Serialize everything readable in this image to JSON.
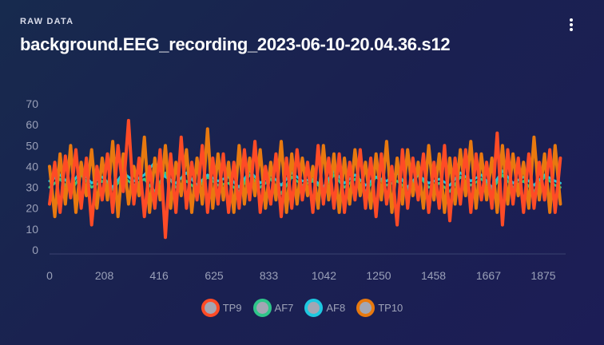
{
  "header": {
    "eyebrow": "RAW DATA",
    "title": "background.EEG_recording_2023-06-10-20.04.36.s12",
    "menu_icon": "more-vertical-icon"
  },
  "chart_data": {
    "type": "line",
    "xlabel": "",
    "ylabel": "",
    "xlim": [
      0,
      1960
    ],
    "ylim": [
      0,
      70
    ],
    "y_ticks": [
      0,
      10,
      20,
      30,
      40,
      50,
      60,
      70
    ],
    "x_ticks": [
      0,
      208,
      416,
      625,
      833,
      1042,
      1250,
      1458,
      1667,
      1875
    ],
    "legend_position": "bottom",
    "grid": false,
    "series": [
      {
        "name": "TP9",
        "color": "#ff4b26",
        "x": [
          0,
          20,
          40,
          60,
          80,
          100,
          120,
          140,
          160,
          180,
          200,
          220,
          240,
          260,
          280,
          300,
          320,
          340,
          360,
          380,
          400,
          420,
          440,
          460,
          480,
          500,
          520,
          540,
          560,
          580,
          600,
          620,
          640,
          660,
          680,
          700,
          720,
          740,
          760,
          780,
          800,
          820,
          840,
          860,
          880,
          900,
          920,
          940,
          960,
          980,
          1000,
          1020,
          1040,
          1060,
          1080,
          1100,
          1120,
          1140,
          1160,
          1180,
          1200,
          1220,
          1240,
          1260,
          1280,
          1300,
          1320,
          1340,
          1360,
          1380,
          1400,
          1420,
          1440,
          1460,
          1480,
          1500,
          1520,
          1540,
          1560,
          1580,
          1600,
          1620,
          1640,
          1660,
          1680,
          1700,
          1720,
          1740,
          1760,
          1780,
          1800,
          1820,
          1840,
          1860,
          1880,
          1900,
          1920,
          1940
        ],
        "values": [
          22,
          42,
          18,
          45,
          25,
          48,
          20,
          44,
          12,
          40,
          24,
          46,
          18,
          50,
          28,
          62,
          22,
          44,
          16,
          40,
          20,
          48,
          6,
          46,
          18,
          54,
          20,
          42,
          24,
          50,
          18,
          44,
          22,
          46,
          18,
          42,
          20,
          48,
          24,
          52,
          18,
          40,
          22,
          46,
          16,
          44,
          20,
          48,
          24,
          42,
          18,
          50,
          22,
          44,
          20,
          46,
          18,
          42,
          24,
          48,
          20,
          44,
          16,
          46,
          22,
          40,
          12,
          48,
          20,
          44,
          24,
          46,
          18,
          42,
          20,
          50,
          14,
          44,
          22,
          48,
          18,
          46,
          24,
          42,
          20,
          56,
          12,
          48,
          22,
          44,
          18,
          46,
          20,
          42,
          24,
          48,
          18,
          44
        ]
      },
      {
        "name": "AF7",
        "color": "#2fc68a",
        "x": [
          0,
          40,
          80,
          120,
          160,
          200,
          240,
          280,
          320,
          360,
          400,
          440,
          480,
          520,
          560,
          600,
          640,
          680,
          720,
          760,
          800,
          840,
          880,
          920,
          960,
          1000,
          1040,
          1080,
          1120,
          1160,
          1200,
          1240,
          1280,
          1320,
          1360,
          1400,
          1440,
          1480,
          1520,
          1560,
          1600,
          1640,
          1680,
          1720,
          1760,
          1800,
          1840,
          1880,
          1920,
          1940
        ],
        "values": [
          30,
          34,
          28,
          36,
          30,
          33,
          29,
          35,
          31,
          34,
          28,
          37,
          30,
          33,
          29,
          35,
          31,
          32,
          28,
          36,
          30,
          34,
          27,
          35,
          31,
          33,
          29,
          36,
          30,
          34,
          28,
          35,
          31,
          33,
          29,
          36,
          30,
          32,
          28,
          35,
          31,
          34,
          29,
          36,
          30,
          33,
          28,
          35,
          31,
          30
        ]
      },
      {
        "name": "AF8",
        "color": "#1ec8e0",
        "x": [
          0,
          40,
          80,
          120,
          160,
          200,
          240,
          280,
          320,
          360,
          400,
          440,
          480,
          520,
          560,
          600,
          640,
          680,
          720,
          760,
          800,
          840,
          880,
          920,
          960,
          1000,
          1040,
          1080,
          1120,
          1160,
          1200,
          1240,
          1280,
          1320,
          1360,
          1400,
          1440,
          1480,
          1520,
          1560,
          1600,
          1640,
          1680,
          1720,
          1760,
          1800,
          1840,
          1880,
          1920,
          1940
        ],
        "values": [
          33,
          36,
          31,
          38,
          32,
          35,
          30,
          37,
          33,
          36,
          42,
          35,
          32,
          37,
          31,
          36,
          33,
          35,
          30,
          38,
          32,
          36,
          31,
          37,
          33,
          34,
          30,
          38,
          32,
          36,
          31,
          35,
          33,
          37,
          30,
          36,
          32,
          34,
          31,
          37,
          33,
          36,
          30,
          38,
          32,
          35,
          31,
          36,
          33,
          32
        ]
      },
      {
        "name": "TP10",
        "color": "#e8790f",
        "x": [
          0,
          20,
          40,
          60,
          80,
          100,
          120,
          140,
          160,
          180,
          200,
          220,
          240,
          260,
          280,
          300,
          320,
          340,
          360,
          380,
          400,
          420,
          440,
          460,
          480,
          500,
          520,
          540,
          560,
          580,
          600,
          620,
          640,
          660,
          680,
          700,
          720,
          740,
          760,
          780,
          800,
          820,
          840,
          860,
          880,
          900,
          920,
          940,
          960,
          980,
          1000,
          1020,
          1040,
          1060,
          1080,
          1100,
          1120,
          1140,
          1160,
          1180,
          1200,
          1220,
          1240,
          1260,
          1280,
          1300,
          1320,
          1340,
          1360,
          1380,
          1400,
          1420,
          1440,
          1460,
          1480,
          1500,
          1520,
          1540,
          1560,
          1580,
          1600,
          1620,
          1640,
          1660,
          1680,
          1700,
          1720,
          1740,
          1760,
          1780,
          1800,
          1820,
          1840,
          1860,
          1880,
          1900,
          1920,
          1940
        ],
        "values": [
          40,
          16,
          46,
          22,
          50,
          18,
          42,
          26,
          48,
          20,
          44,
          24,
          52,
          16,
          46,
          22,
          40,
          26,
          54,
          18,
          44,
          24,
          50,
          20,
          42,
          26,
          48,
          18,
          44,
          22,
          58,
          20,
          46,
          24,
          42,
          18,
          50,
          22,
          44,
          26,
          48,
          20,
          42,
          24,
          52,
          18,
          46,
          22,
          44,
          26,
          40,
          20,
          50,
          24,
          46,
          18,
          44,
          22,
          48,
          26,
          42,
          20,
          46,
          24,
          52,
          18,
          44,
          22,
          48,
          26,
          42,
          20,
          50,
          24,
          46,
          18,
          44,
          22,
          48,
          26,
          52,
          20,
          46,
          24,
          44,
          18,
          50,
          22,
          46,
          26,
          42,
          20,
          54,
          24,
          46,
          18,
          50,
          22
        ]
      }
    ]
  }
}
